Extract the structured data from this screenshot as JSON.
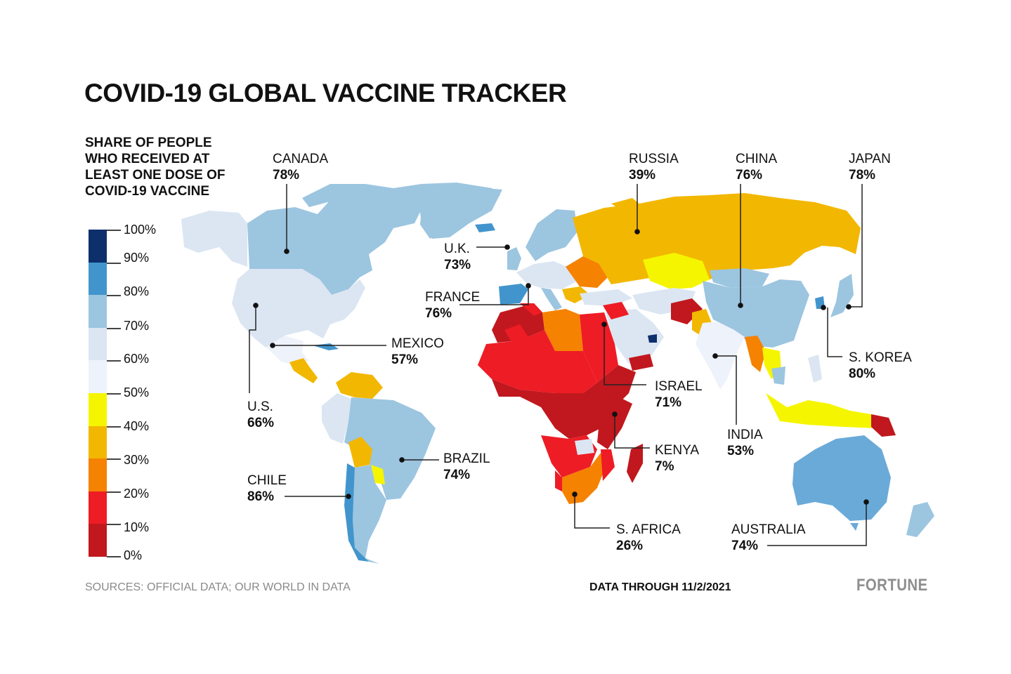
{
  "title": "COVID-19 GLOBAL VACCINE TRACKER",
  "legend": {
    "title": "SHARE OF PEOPLE WHO RECEIVED AT LEAST ONE DOSE OF COVID-19 VACCINE",
    "stops": [
      {
        "label": "100%",
        "color": "#0d2f6b"
      },
      {
        "label": "90%",
        "color": "#4295cc"
      },
      {
        "label": "80%",
        "color": "#9cc5e0"
      },
      {
        "label": "70%",
        "color": "#dbe6f2"
      },
      {
        "label": "60%",
        "color": "#eef2fa"
      },
      {
        "label": "50%",
        "color": "#f5f500"
      },
      {
        "label": "40%",
        "color": "#f2b700"
      },
      {
        "label": "30%",
        "color": "#f58200"
      },
      {
        "label": "20%",
        "color": "#ee1c25"
      },
      {
        "label": "10%",
        "color": "#c0181e"
      },
      {
        "label": "0%",
        "color": null
      }
    ]
  },
  "countries": {
    "canada": {
      "name": "CANADA",
      "value": "78%"
    },
    "russia": {
      "name": "RUSSIA",
      "value": "39%"
    },
    "china": {
      "name": "CHINA",
      "value": "76%"
    },
    "japan": {
      "name": "JAPAN",
      "value": "78%"
    },
    "uk": {
      "name": "U.K.",
      "value": "73%"
    },
    "france": {
      "name": "FRANCE",
      "value": "76%"
    },
    "mexico": {
      "name": "MEXICO",
      "value": "57%"
    },
    "skorea": {
      "name": "S. KOREA",
      "value": "80%"
    },
    "israel": {
      "name": "ISRAEL",
      "value": "71%"
    },
    "us": {
      "name": "U.S.",
      "value": "66%"
    },
    "india": {
      "name": "INDIA",
      "value": "53%"
    },
    "kenya": {
      "name": "KENYA",
      "value": "7%"
    },
    "brazil": {
      "name": "BRAZIL",
      "value": "74%"
    },
    "chile": {
      "name": "CHILE",
      "value": "86%"
    },
    "safrica": {
      "name": "S. AFRICA",
      "value": "26%"
    },
    "australia": {
      "name": "AUSTRALIA",
      "value": "74%"
    }
  },
  "footer": {
    "sources": "SOURCES: OFFICIAL DATA; OUR WORLD IN DATA",
    "date": "DATA THROUGH 11/2/2021",
    "brand": "FORTUNE"
  }
}
